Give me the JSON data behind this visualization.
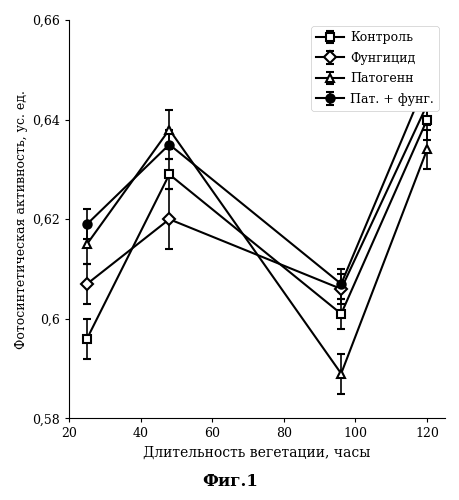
{
  "x": [
    25,
    48,
    96,
    120
  ],
  "series": {
    "Контроль": {
      "y": [
        0.596,
        0.629,
        0.601,
        0.64
      ],
      "yerr": [
        0.004,
        0.003,
        0.003,
        0.004
      ],
      "marker": "s",
      "color": "#000000",
      "fillstyle": "none"
    },
    "Фунгицид": {
      "y": [
        0.607,
        0.62,
        0.606,
        0.643
      ],
      "yerr": [
        0.004,
        0.006,
        0.003,
        0.004
      ],
      "marker": "D",
      "color": "#000000",
      "fillstyle": "none"
    },
    "Патогенн": {
      "y": [
        0.615,
        0.638,
        0.589,
        0.634
      ],
      "yerr": [
        0.004,
        0.004,
        0.004,
        0.004
      ],
      "marker": "^",
      "color": "#000000",
      "fillstyle": "none"
    },
    "Пат. + фунг.": {
      "y": [
        0.619,
        0.635,
        0.607,
        0.648
      ],
      "yerr": [
        0.003,
        0.003,
        0.003,
        0.003
      ],
      "marker": "o",
      "color": "#000000",
      "fillstyle": "full"
    }
  },
  "series_order": [
    "Контроль",
    "Фунгицид",
    "Патогенн",
    "Пат. + фунг."
  ],
  "xlabel": "Длительность вегетации, часы",
  "ylabel": "Фотосинтетическая активность, ус. ед.",
  "caption": "Фиг.1",
  "xlim": [
    20,
    125
  ],
  "ylim": [
    0.58,
    0.66
  ],
  "xticks": [
    20,
    40,
    60,
    80,
    100,
    120
  ],
  "yticks": [
    0.58,
    0.6,
    0.62,
    0.64,
    0.66
  ],
  "background_color": "#ffffff"
}
